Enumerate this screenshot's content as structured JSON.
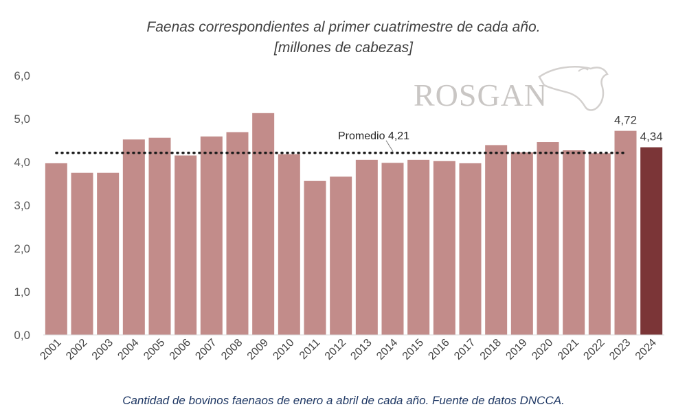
{
  "chart_data": {
    "type": "bar",
    "title": "Faenas correspondientes al primer cuatrimestre de cada año.",
    "subtitle": "[millones de cabezas]",
    "categories": [
      "2001",
      "2002",
      "2003",
      "2004",
      "2005",
      "2006",
      "2007",
      "2008",
      "2009",
      "2010",
      "2011",
      "2012",
      "2013",
      "2014",
      "2015",
      "2016",
      "2017",
      "2018",
      "2019",
      "2020",
      "2021",
      "2022",
      "2023",
      "2024"
    ],
    "values": [
      3.97,
      3.75,
      3.75,
      4.52,
      4.56,
      4.15,
      4.59,
      4.69,
      5.13,
      4.18,
      3.56,
      3.66,
      4.05,
      3.98,
      4.05,
      4.02,
      3.97,
      4.39,
      4.22,
      4.46,
      4.27,
      4.2,
      4.72,
      4.34
    ],
    "value_labels": {
      "2023": "4,72",
      "2024": "4,34"
    },
    "highlight_category": "2024",
    "ylim": [
      0,
      6
    ],
    "yticks": [
      "0,0",
      "1,0",
      "2,0",
      "3,0",
      "4,0",
      "5,0",
      "6,0"
    ],
    "xlabel": "",
    "ylabel": "",
    "grid": false,
    "reference_line": {
      "label": "Promedio 4,21",
      "value": 4.21,
      "style": "dotted"
    },
    "colors": {
      "bar": "#c28c8a",
      "highlight": "#7b3537",
      "average_line": "#1a1a1a"
    }
  },
  "logo_text": "ROSGAN",
  "caption": "Cantidad de bovinos faenaos de enero a abril de cada año. Fuente de datos DNCCA."
}
